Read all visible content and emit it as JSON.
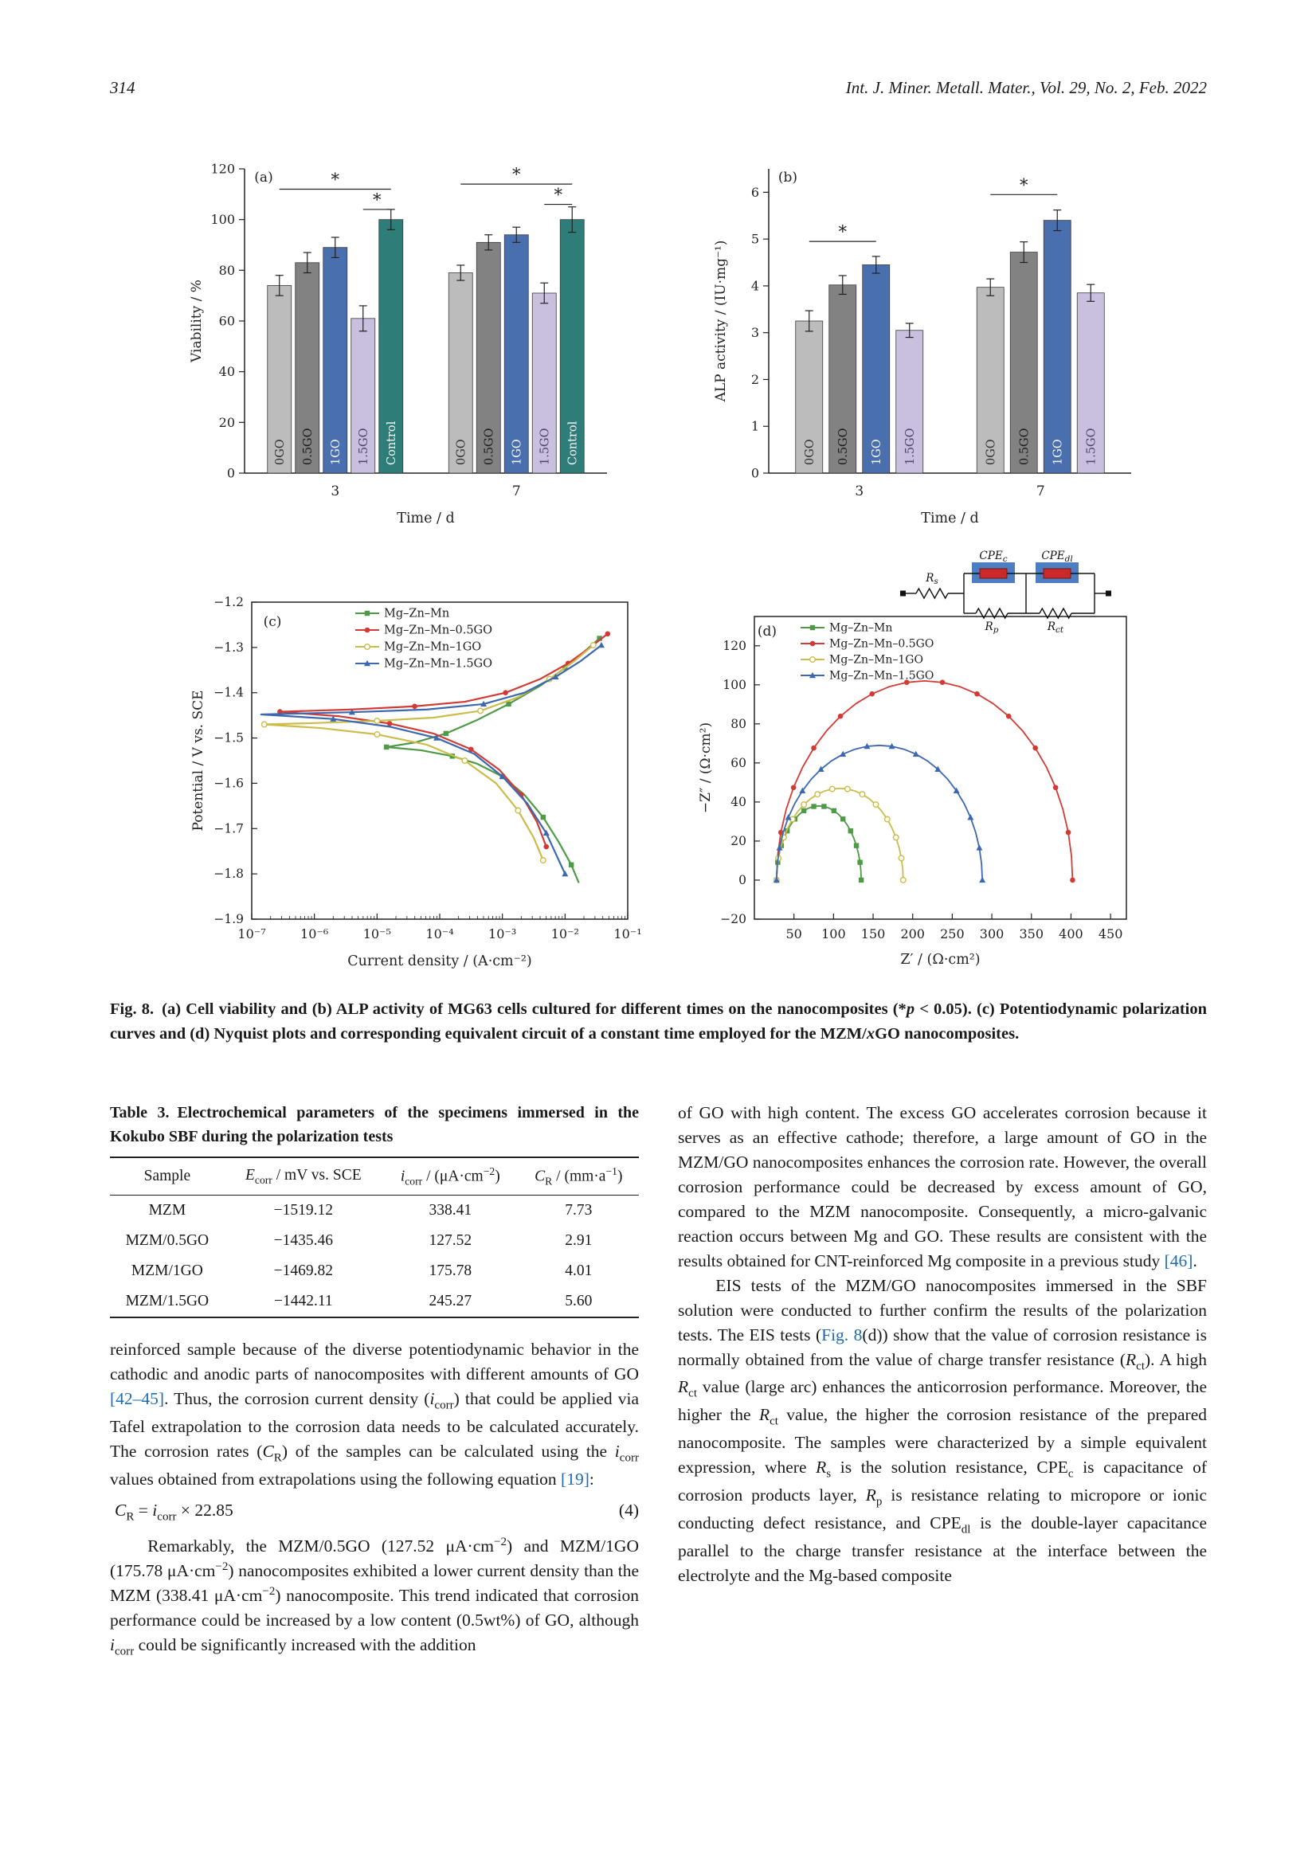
{
  "page": {
    "number": "314",
    "journal": "Int. J. Miner. Metall. Mater., Vol. 29, No. 2, Feb. 2022"
  },
  "chart_data": [
    {
      "panel": "(a)",
      "type": "bar",
      "title": "Cell viability",
      "xlabel": "Time / d",
      "ylabel": "Viability / %",
      "ylim": [
        0,
        120
      ],
      "ytick_step": 20,
      "groups": [
        "3",
        "7"
      ],
      "series": [
        "0GO",
        "0.5GO",
        "1GO",
        "1.5GO",
        "Control"
      ],
      "colors": [
        "#bcbcbc",
        "#828282",
        "#4a6fae",
        "#c9c0e0",
        "#2f7d78"
      ],
      "label_colors": [
        "#333333",
        "#1d1d1d",
        "#f5f5f5",
        "#4f4668",
        "#f5f5f5"
      ],
      "values": [
        [
          74,
          83,
          89,
          61,
          100
        ],
        [
          79,
          91,
          94,
          71,
          100
        ]
      ],
      "errors": [
        [
          4,
          4,
          4,
          5,
          4
        ],
        [
          3,
          3,
          3,
          4,
          5
        ]
      ],
      "brackets": [
        {
          "group": 0,
          "from": 0,
          "to": 4,
          "level": 112
        },
        {
          "group": 0,
          "from": 3,
          "to": 4,
          "level": 104
        },
        {
          "group": 1,
          "from": 0,
          "to": 4,
          "level": 114
        },
        {
          "group": 1,
          "from": 3,
          "to": 4,
          "level": 106
        }
      ],
      "sig_marker": "*"
    },
    {
      "panel": "(b)",
      "type": "bar",
      "title": "ALP activity",
      "xlabel": "Time / d",
      "ylabel": "ALP activity / (IU·mg⁻¹)",
      "ylim": [
        0,
        6.5
      ],
      "ytick_step": 1,
      "groups": [
        "3",
        "7"
      ],
      "series": [
        "0GO",
        "0.5GO",
        "1GO",
        "1.5GO"
      ],
      "colors": [
        "#bcbcbc",
        "#828282",
        "#4a6fae",
        "#c9c0e0"
      ],
      "label_colors": [
        "#333333",
        "#1d1d1d",
        "#f5f5f5",
        "#4f4668"
      ],
      "values": [
        [
          3.25,
          4.02,
          4.45,
          3.05
        ],
        [
          3.97,
          4.72,
          5.4,
          3.85
        ]
      ],
      "errors": [
        [
          0.22,
          0.2,
          0.18,
          0.15
        ],
        [
          0.18,
          0.22,
          0.22,
          0.18
        ]
      ],
      "brackets": [
        {
          "group": 0,
          "from": 0,
          "to": 2,
          "level": 4.95
        },
        {
          "group": 1,
          "from": 0,
          "to": 2,
          "level": 5.95
        }
      ],
      "sig_marker": "*"
    },
    {
      "panel": "(c)",
      "type": "line",
      "xlabel": "Current density / (A·cm⁻²)",
      "ylabel": "Potential / V vs. SCE",
      "xlim": [
        -7,
        -1
      ],
      "xtick_labels": [
        "10⁻⁷",
        "10⁻⁶",
        "10⁻⁵",
        "10⁻⁴",
        "10⁻³",
        "10⁻²",
        "10⁻¹"
      ],
      "ylim": [
        -1.9,
        -1.2
      ],
      "ytick_step": 0.1,
      "series": [
        {
          "name": "Mg–Zn–Mn",
          "color": "#4e9a47",
          "marker": "square",
          "points": [
            [
              -1.45,
              -1.28
            ],
            [
              -1.7,
              -1.31
            ],
            [
              -2.0,
              -1.345
            ],
            [
              -2.4,
              -1.385
            ],
            [
              -2.9,
              -1.425
            ],
            [
              -3.4,
              -1.46
            ],
            [
              -3.9,
              -1.49
            ],
            [
              -4.4,
              -1.51
            ],
            [
              -4.85,
              -1.52
            ],
            [
              -4.3,
              -1.527
            ],
            [
              -3.8,
              -1.54
            ],
            [
              -3.4,
              -1.557
            ],
            [
              -3.0,
              -1.585
            ],
            [
              -2.65,
              -1.625
            ],
            [
              -2.35,
              -1.675
            ],
            [
              -2.1,
              -1.73
            ],
            [
              -1.9,
              -1.78
            ],
            [
              -1.78,
              -1.82
            ]
          ]
        },
        {
          "name": "Mg–Zn–Mn–0.5GO",
          "color": "#d23b35",
          "marker": "circle",
          "points": [
            [
              -1.32,
              -1.27
            ],
            [
              -1.6,
              -1.3
            ],
            [
              -1.95,
              -1.335
            ],
            [
              -2.4,
              -1.37
            ],
            [
              -2.95,
              -1.4
            ],
            [
              -3.6,
              -1.42
            ],
            [
              -4.4,
              -1.43
            ],
            [
              -5.4,
              -1.437
            ],
            [
              -6.55,
              -1.442
            ],
            [
              -5.6,
              -1.452
            ],
            [
              -4.8,
              -1.468
            ],
            [
              -4.1,
              -1.49
            ],
            [
              -3.5,
              -1.525
            ],
            [
              -3.05,
              -1.57
            ],
            [
              -2.7,
              -1.625
            ],
            [
              -2.45,
              -1.685
            ],
            [
              -2.3,
              -1.74
            ]
          ]
        },
        {
          "name": "Mg–Zn–Mn–1GO",
          "color": "#ccbc4a",
          "marker": "circle-open",
          "points": [
            [
              -1.55,
              -1.295
            ],
            [
              -1.85,
              -1.33
            ],
            [
              -2.25,
              -1.37
            ],
            [
              -2.75,
              -1.41
            ],
            [
              -3.35,
              -1.44
            ],
            [
              -4.1,
              -1.455
            ],
            [
              -5.0,
              -1.462
            ],
            [
              -6.0,
              -1.467
            ],
            [
              -6.8,
              -1.47
            ],
            [
              -5.9,
              -1.478
            ],
            [
              -5.0,
              -1.492
            ],
            [
              -4.2,
              -1.515
            ],
            [
              -3.6,
              -1.55
            ],
            [
              -3.1,
              -1.6
            ],
            [
              -2.75,
              -1.66
            ],
            [
              -2.5,
              -1.72
            ],
            [
              -2.35,
              -1.77
            ]
          ]
        },
        {
          "name": "Mg–Zn–Mn–1.5GO",
          "color": "#3c68b0",
          "marker": "triangle",
          "points": [
            [
              -1.42,
              -1.295
            ],
            [
              -1.75,
              -1.33
            ],
            [
              -2.15,
              -1.365
            ],
            [
              -2.65,
              -1.4
            ],
            [
              -3.3,
              -1.425
            ],
            [
              -4.2,
              -1.437
            ],
            [
              -5.4,
              -1.443
            ],
            [
              -6.85,
              -1.448
            ],
            [
              -5.7,
              -1.458
            ],
            [
              -4.8,
              -1.475
            ],
            [
              -4.05,
              -1.5
            ],
            [
              -3.45,
              -1.535
            ],
            [
              -3.0,
              -1.585
            ],
            [
              -2.6,
              -1.645
            ],
            [
              -2.3,
              -1.71
            ],
            [
              -2.1,
              -1.77
            ],
            [
              -2.0,
              -1.8
            ]
          ]
        }
      ]
    },
    {
      "panel": "(d)",
      "type": "nyquist",
      "xlabel": "Z′ / (Ω·cm²)",
      "ylabel": "−Z″ / (Ω·cm²)",
      "xlim": [
        0,
        470
      ],
      "xticks": [
        50,
        100,
        150,
        200,
        250,
        300,
        350,
        400,
        450
      ],
      "ylim": [
        -20,
        135
      ],
      "yticks": [
        -20,
        0,
        20,
        40,
        60,
        80,
        100,
        120
      ],
      "series": [
        {
          "name": "Mg–Zn–Mn",
          "color": "#4e9a47",
          "marker": "square",
          "arc": {
            "start": 28,
            "end": 135,
            "peak": 38
          }
        },
        {
          "name": "Mg–Zn–Mn–0.5GO",
          "color": "#d23b35",
          "marker": "circle",
          "arc": {
            "start": 28,
            "end": 402,
            "peak": 102
          }
        },
        {
          "name": "Mg–Zn–Mn–1GO",
          "color": "#ccbc4a",
          "marker": "circle-open",
          "arc": {
            "start": 28,
            "end": 188,
            "peak": 47
          }
        },
        {
          "name": "Mg–Zn–Mn–1.5GO",
          "color": "#3c68b0",
          "marker": "triangle",
          "arc": {
            "start": 28,
            "end": 288,
            "peak": 69
          }
        }
      ],
      "circuit": {
        "box_color": "#4d7ec2",
        "cpe_color": "#cc2a2a",
        "elements": [
          [
            "R",
            "s"
          ],
          [
            "CPE",
            "c"
          ],
          [
            "R",
            "p"
          ],
          [
            "CPE",
            "dl"
          ],
          [
            "R",
            "ct"
          ]
        ]
      }
    }
  ],
  "figure_caption": {
    "label": "Fig. 8.",
    "html": "(a) Cell viability and (b) ALP activity of MG63 cells cultured for different times on the nanocomposites (*<i>p</i> &lt; 0.05). (c) Potentiodynamic polarization curves and (d) Nyquist plots and corresponding equivalent circuit of a constant time employed for the MZM/<i>x</i>GO nanocomposites."
  },
  "table3": {
    "label": "Table 3.",
    "title": "Electrochemical parameters of the specimens immersed in the Kokubo SBF during the polarization tests",
    "headers_html": [
      "Sample",
      "<i>E</i><sub>corr</sub> / mV vs. SCE",
      "<i>i</i><sub>corr</sub> / (μA·cm<sup>−2</sup>)",
      "<i>C</i><sub>R</sub> / (mm·a<sup>−1</sup>)"
    ],
    "rows": [
      [
        "MZM",
        "−1519.12",
        "338.41",
        "7.73"
      ],
      [
        "MZM/0.5GO",
        "−1435.46",
        "127.52",
        "2.91"
      ],
      [
        "MZM/1GO",
        "−1469.82",
        "175.78",
        "4.01"
      ],
      [
        "MZM/1.5GO",
        "−1442.11",
        "245.27",
        "5.60"
      ]
    ]
  },
  "body": {
    "left_p1": "reinforced sample because of the diverse potentiodynamic behavior in the cathodic and anodic parts of nanocomposites with different amounts of GO <span class='ref' data-name='reference-link' data-interactable='true'>[42–45]</span>. Thus, the corrosion current density (<i>i</i><sub>corr</sub>) that could be applied via Tafel extrapolation to the corrosion data needs to be calculated accurately. The corrosion rates (<i>C</i><sub>R</sub>) of the samples can be calculated using the <i>i</i><sub>corr</sub> values obtained from extrapolations using the following equation <span class='ref' data-name='reference-link' data-interactable='true'>[19]</span>:",
    "equation_html": "<i>C</i><sub>R</sub> = <i>i</i><sub>corr</sub> × 22.85",
    "equation_number": "(4)",
    "left_p2": "Remarkably, the MZM/0.5GO (127.52 μA·cm<sup>−2</sup>) and MZM/1GO (175.78 μA·cm<sup>−2</sup>) nanocomposites exhibited a lower current density than the MZM (338.41 μA·cm<sup>−2</sup>) nanocomposite. This trend indicated that corrosion performance could be increased by a low content (0.5wt%) of GO, although <i>i</i><sub>corr</sub> could be significantly increased with the addition",
    "right_p1": "of GO with high content. The excess GO accelerates corrosion because it serves as an effective cathode; therefore, a large amount of GO in the MZM/GO nanocomposites enhances the corrosion rate. However, the overall corrosion performance could be decreased by excess amount of GO, compared to the MZM nanocomposite. Consequently, a micro-galvanic reaction occurs between Mg and GO. These results are consistent with the results obtained for CNT-reinforced Mg composite in a previous study <span class='ref' data-name='reference-link' data-interactable='true'>[46]</span>.",
    "right_p2": "EIS tests of the MZM/GO nanocomposites immersed in the SBF solution were conducted to further confirm the results of the polarization tests. The EIS tests (<span class='ref' data-name='reference-link' data-interactable='true'>Fig. 8</span>(d)) show that the value of corrosion resistance is normally obtained from the value of charge transfer resistance (<i>R</i><sub>ct</sub>). A high <i>R</i><sub>ct</sub> value (large arc) enhances the anticorrosion performance. Moreover, the higher the <i>R</i><sub>ct</sub> value, the higher the corrosion resistance of the prepared nanocomposite. The samples were characterized by a simple equivalent expression, where <i>R</i><sub>s</sub> is the solution resistance, CPE<sub>c</sub> is capacitance of corrosion products layer, <i>R</i><sub>p</sub> is resistance relating to micropore or ionic conducting defect resistance, and CPE<sub>dl</sub> is the double-layer capacitance parallel to the charge transfer resistance at the interface between the electrolyte and the Mg-based composite"
  }
}
